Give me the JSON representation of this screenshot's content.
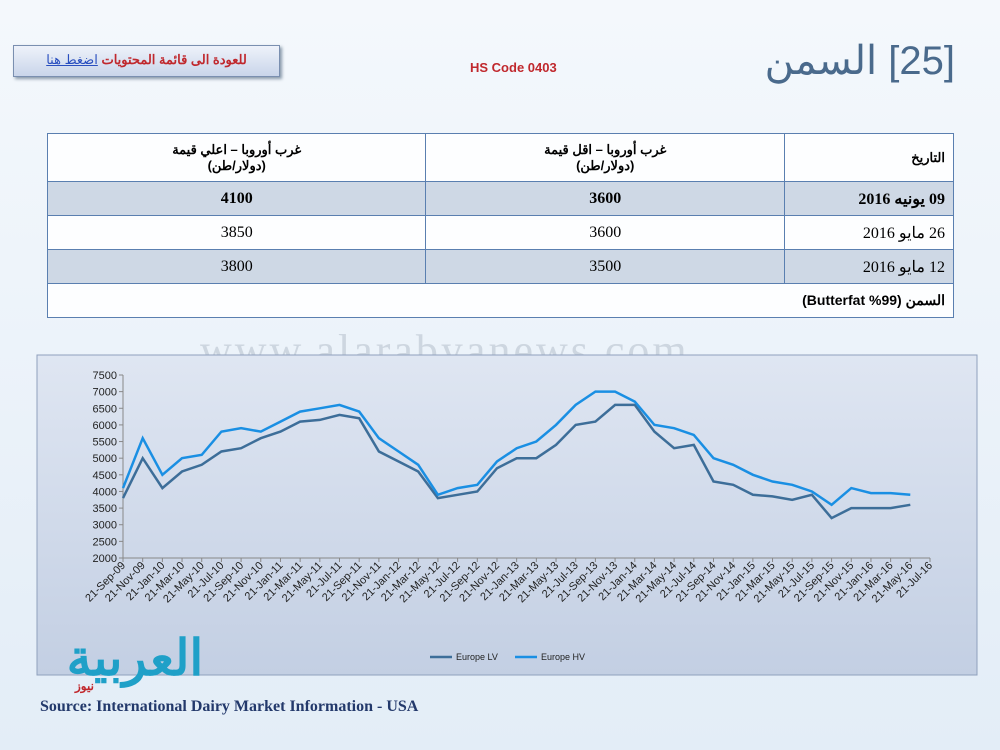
{
  "header": {
    "title": "[25] السمن",
    "hs_code": "HS Code 0403",
    "back_text": "للعودة الى قائمة المحتويات",
    "back_link": "اضغط هنا"
  },
  "table": {
    "header": [
      [
        "التاريخ"
      ],
      [
        "غرب أوروبا – اقل قيمة",
        "(دولار/طن)"
      ],
      [
        "غرب أوروبا – اعلي قيمة",
        "(دولار/طن)"
      ]
    ],
    "rows": [
      [
        "09 يونيه 2016",
        3600,
        4100
      ],
      [
        "26 مايو 2016",
        3600,
        3850
      ],
      [
        "12 مايو 2016",
        3500,
        3800
      ]
    ],
    "footer": "السمن (99% Butterfat)"
  },
  "watermark": "www.alarabyanews.com",
  "logo": {
    "main": "العربية",
    "sub": "نيوز"
  },
  "source": "Source: International Dairy Market Information - USA",
  "chart_data": {
    "type": "line",
    "categories": [
      "21-Sep-09",
      "21-Nov-09",
      "21-Jan-10",
      "21-Mar-10",
      "21-May-10",
      "21-Jul-10",
      "21-Sep-10",
      "21-Nov-10",
      "21-Jan-11",
      "21-Mar-11",
      "21-May-11",
      "21-Jul-11",
      "21-Sep-11",
      "21-Nov-11",
      "21-Jan-12",
      "21-Mar-12",
      "21-May-12",
      "21-Jul-12",
      "21-Sep-12",
      "21-Nov-12",
      "21-Jan-13",
      "21-Mar-13",
      "21-May-13",
      "21-Jul-13",
      "21-Sep-13",
      "21-Nov-13",
      "21-Jan-14",
      "21-Mar-14",
      "21-May-14",
      "21-Jul-14",
      "21-Sep-14",
      "21-Nov-14",
      "21-Jan-15",
      "21-Mar-15",
      "21-May-15",
      "21-Jul-15",
      "21-Sep-15",
      "21-Nov-15",
      "21-Jan-16",
      "21-Mar-16",
      "21-May-16",
      "21-Jul-16"
    ],
    "series": [
      {
        "name": "Europe LV",
        "color": "#3d6e99",
        "values": [
          3800,
          5000,
          4100,
          4600,
          4800,
          5200,
          5300,
          5600,
          5800,
          6100,
          6150,
          6300,
          6200,
          5200,
          4900,
          4600,
          3800,
          3900,
          4000,
          4700,
          5000,
          5000,
          5400,
          6000,
          6100,
          6600,
          6600,
          5800,
          5300,
          5400,
          4300,
          4200,
          3900,
          3850,
          3750,
          3900,
          3200,
          3500,
          3500,
          3500,
          3600,
          null
        ]
      },
      {
        "name": "Europe HV",
        "color": "#1a8fe3",
        "values": [
          4100,
          5600,
          4500,
          5000,
          5100,
          5800,
          5900,
          5800,
          6100,
          6400,
          6500,
          6600,
          6400,
          5600,
          5200,
          4800,
          3900,
          4100,
          4200,
          4900,
          5300,
          5500,
          6000,
          6600,
          7000,
          7000,
          6700,
          6000,
          5900,
          5700,
          5000,
          4800,
          4500,
          4300,
          4200,
          4000,
          3600,
          4100,
          3950,
          3950,
          3900,
          null
        ]
      }
    ],
    "ylim": [
      2000,
      7500
    ],
    "yticks": [
      2000,
      2500,
      3000,
      3500,
      4000,
      4500,
      5000,
      5500,
      6000,
      6500,
      7000,
      7500
    ],
    "legend": "bottom"
  }
}
